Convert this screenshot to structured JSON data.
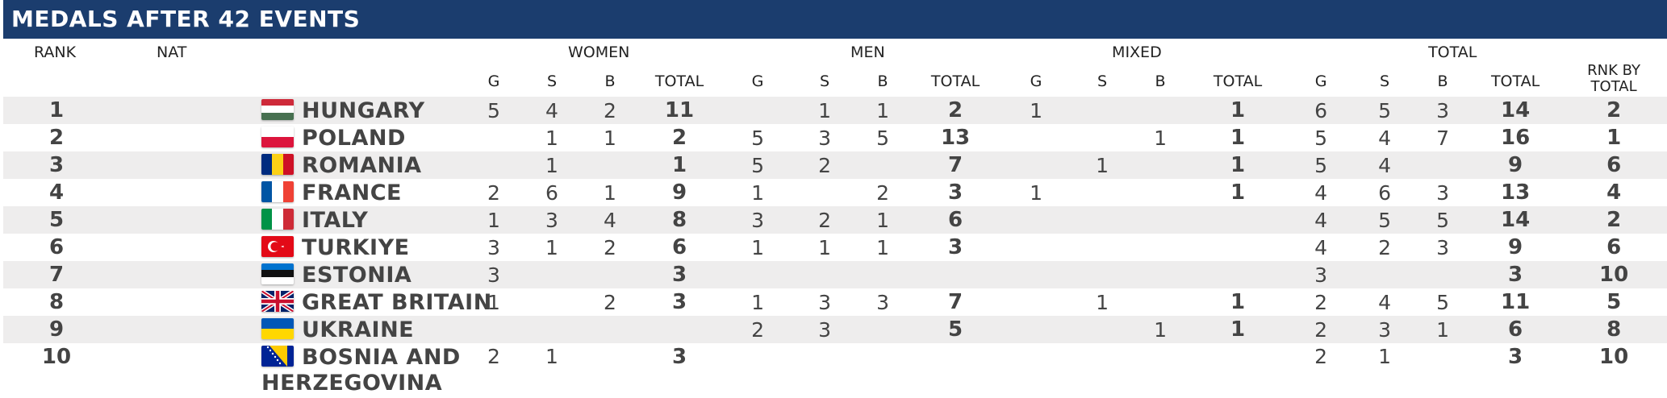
{
  "title": "MEDALS AFTER 42 EVENTS",
  "headers": {
    "rank": "RANK",
    "nat": "NAT",
    "groups": [
      "WOMEN",
      "MEN",
      "MIXED",
      "TOTAL"
    ],
    "sub": [
      "G",
      "S",
      "B",
      "TOTAL"
    ],
    "rank_by_total_line1": "RNK BY",
    "rank_by_total_line2": "TOTAL"
  },
  "rows": [
    {
      "rank": "1",
      "nat": "HUNGARY",
      "flag": "hungary-flag-icon",
      "women": [
        "5",
        "4",
        "2",
        "11"
      ],
      "men": [
        "",
        "1",
        "1",
        "2"
      ],
      "mixed": [
        "1",
        "",
        "",
        "1"
      ],
      "total": [
        "6",
        "5",
        "3",
        "14"
      ],
      "rbt": "2"
    },
    {
      "rank": "2",
      "nat": "POLAND",
      "flag": "poland-flag-icon",
      "women": [
        "",
        "1",
        "1",
        "2"
      ],
      "men": [
        "5",
        "3",
        "5",
        "13"
      ],
      "mixed": [
        "",
        "",
        "1",
        "1"
      ],
      "total": [
        "5",
        "4",
        "7",
        "16"
      ],
      "rbt": "1"
    },
    {
      "rank": "3",
      "nat": "ROMANIA",
      "flag": "romania-flag-icon",
      "women": [
        "",
        "1",
        "",
        "1"
      ],
      "men": [
        "5",
        "2",
        "",
        "7"
      ],
      "mixed": [
        "",
        "1",
        "",
        "1"
      ],
      "total": [
        "5",
        "4",
        "",
        "9"
      ],
      "rbt": "6"
    },
    {
      "rank": "4",
      "nat": "FRANCE",
      "flag": "france-flag-icon",
      "women": [
        "2",
        "6",
        "1",
        "9"
      ],
      "men": [
        "1",
        "",
        "2",
        "3"
      ],
      "mixed": [
        "1",
        "",
        "",
        "1"
      ],
      "total": [
        "4",
        "6",
        "3",
        "13"
      ],
      "rbt": "4"
    },
    {
      "rank": "5",
      "nat": "ITALY",
      "flag": "italy-flag-icon",
      "women": [
        "1",
        "3",
        "4",
        "8"
      ],
      "men": [
        "3",
        "2",
        "1",
        "6"
      ],
      "mixed": [
        "",
        "",
        "",
        ""
      ],
      "total": [
        "4",
        "5",
        "5",
        "14"
      ],
      "rbt": "2"
    },
    {
      "rank": "6",
      "nat": "TURKIYE",
      "flag": "turkiye-flag-icon",
      "women": [
        "3",
        "1",
        "2",
        "6"
      ],
      "men": [
        "1",
        "1",
        "1",
        "3"
      ],
      "mixed": [
        "",
        "",
        "",
        ""
      ],
      "total": [
        "4",
        "2",
        "3",
        "9"
      ],
      "rbt": "6"
    },
    {
      "rank": "7",
      "nat": "ESTONIA",
      "flag": "estonia-flag-icon",
      "women": [
        "3",
        "",
        "",
        "3"
      ],
      "men": [
        "",
        "",
        "",
        ""
      ],
      "mixed": [
        "",
        "",
        "",
        ""
      ],
      "total": [
        "3",
        "",
        "",
        "3"
      ],
      "rbt": "10"
    },
    {
      "rank": "8",
      "nat": "GREAT BRITAIN",
      "flag": "great-britain-flag-icon",
      "women": [
        "1",
        "",
        "2",
        "3"
      ],
      "men": [
        "1",
        "3",
        "3",
        "7"
      ],
      "mixed": [
        "",
        "1",
        "",
        "1"
      ],
      "total": [
        "2",
        "4",
        "5",
        "11"
      ],
      "rbt": "5"
    },
    {
      "rank": "9",
      "nat": "UKRAINE",
      "flag": "ukraine-flag-icon",
      "women": [
        "",
        "",
        "",
        ""
      ],
      "men": [
        "2",
        "3",
        "",
        "5"
      ],
      "mixed": [
        "",
        "",
        "1",
        "1"
      ],
      "total": [
        "2",
        "3",
        "1",
        "6"
      ],
      "rbt": "8"
    },
    {
      "rank": "10",
      "nat": "BOSNIA AND HERZEGOVINA",
      "flag": "bosnia-flag-icon",
      "women": [
        "2",
        "1",
        "",
        "3"
      ],
      "men": [
        "",
        "",
        "",
        ""
      ],
      "mixed": [
        "",
        "",
        "",
        ""
      ],
      "total": [
        "2",
        "1",
        "",
        "3"
      ],
      "rbt": "10"
    }
  ],
  "colors": {
    "title_bg": "#1b3d6e",
    "stripe": "#eeeded"
  }
}
